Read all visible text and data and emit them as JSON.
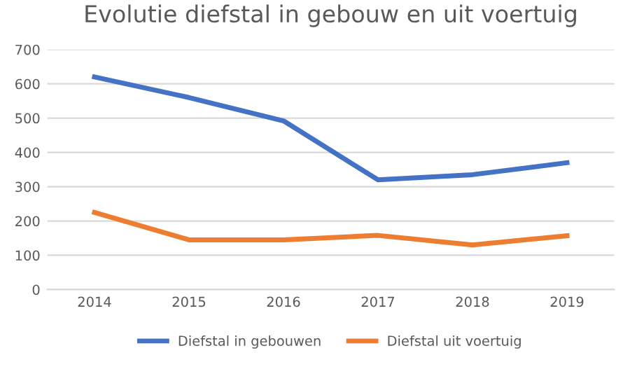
{
  "chart_data": {
    "type": "line",
    "title": "Evolutie diefstal in gebouw en uit voertuig",
    "categories": [
      "2014",
      "2015",
      "2016",
      "2017",
      "2018",
      "2019"
    ],
    "series": [
      {
        "name": "Diefstal in gebouwen",
        "color": "#4472c4",
        "values": [
          620,
          560,
          492,
          320,
          335,
          370
        ]
      },
      {
        "name": "Diefstal uit voertuig",
        "color": "#ed7d31",
        "values": [
          225,
          145,
          145,
          158,
          130,
          157
        ]
      }
    ],
    "ylim": [
      0,
      700
    ],
    "yticks": [
      0,
      100,
      200,
      300,
      400,
      500,
      600,
      700
    ],
    "grid": "y",
    "legend": "bottom",
    "marker": "none",
    "line_style": "solid"
  }
}
